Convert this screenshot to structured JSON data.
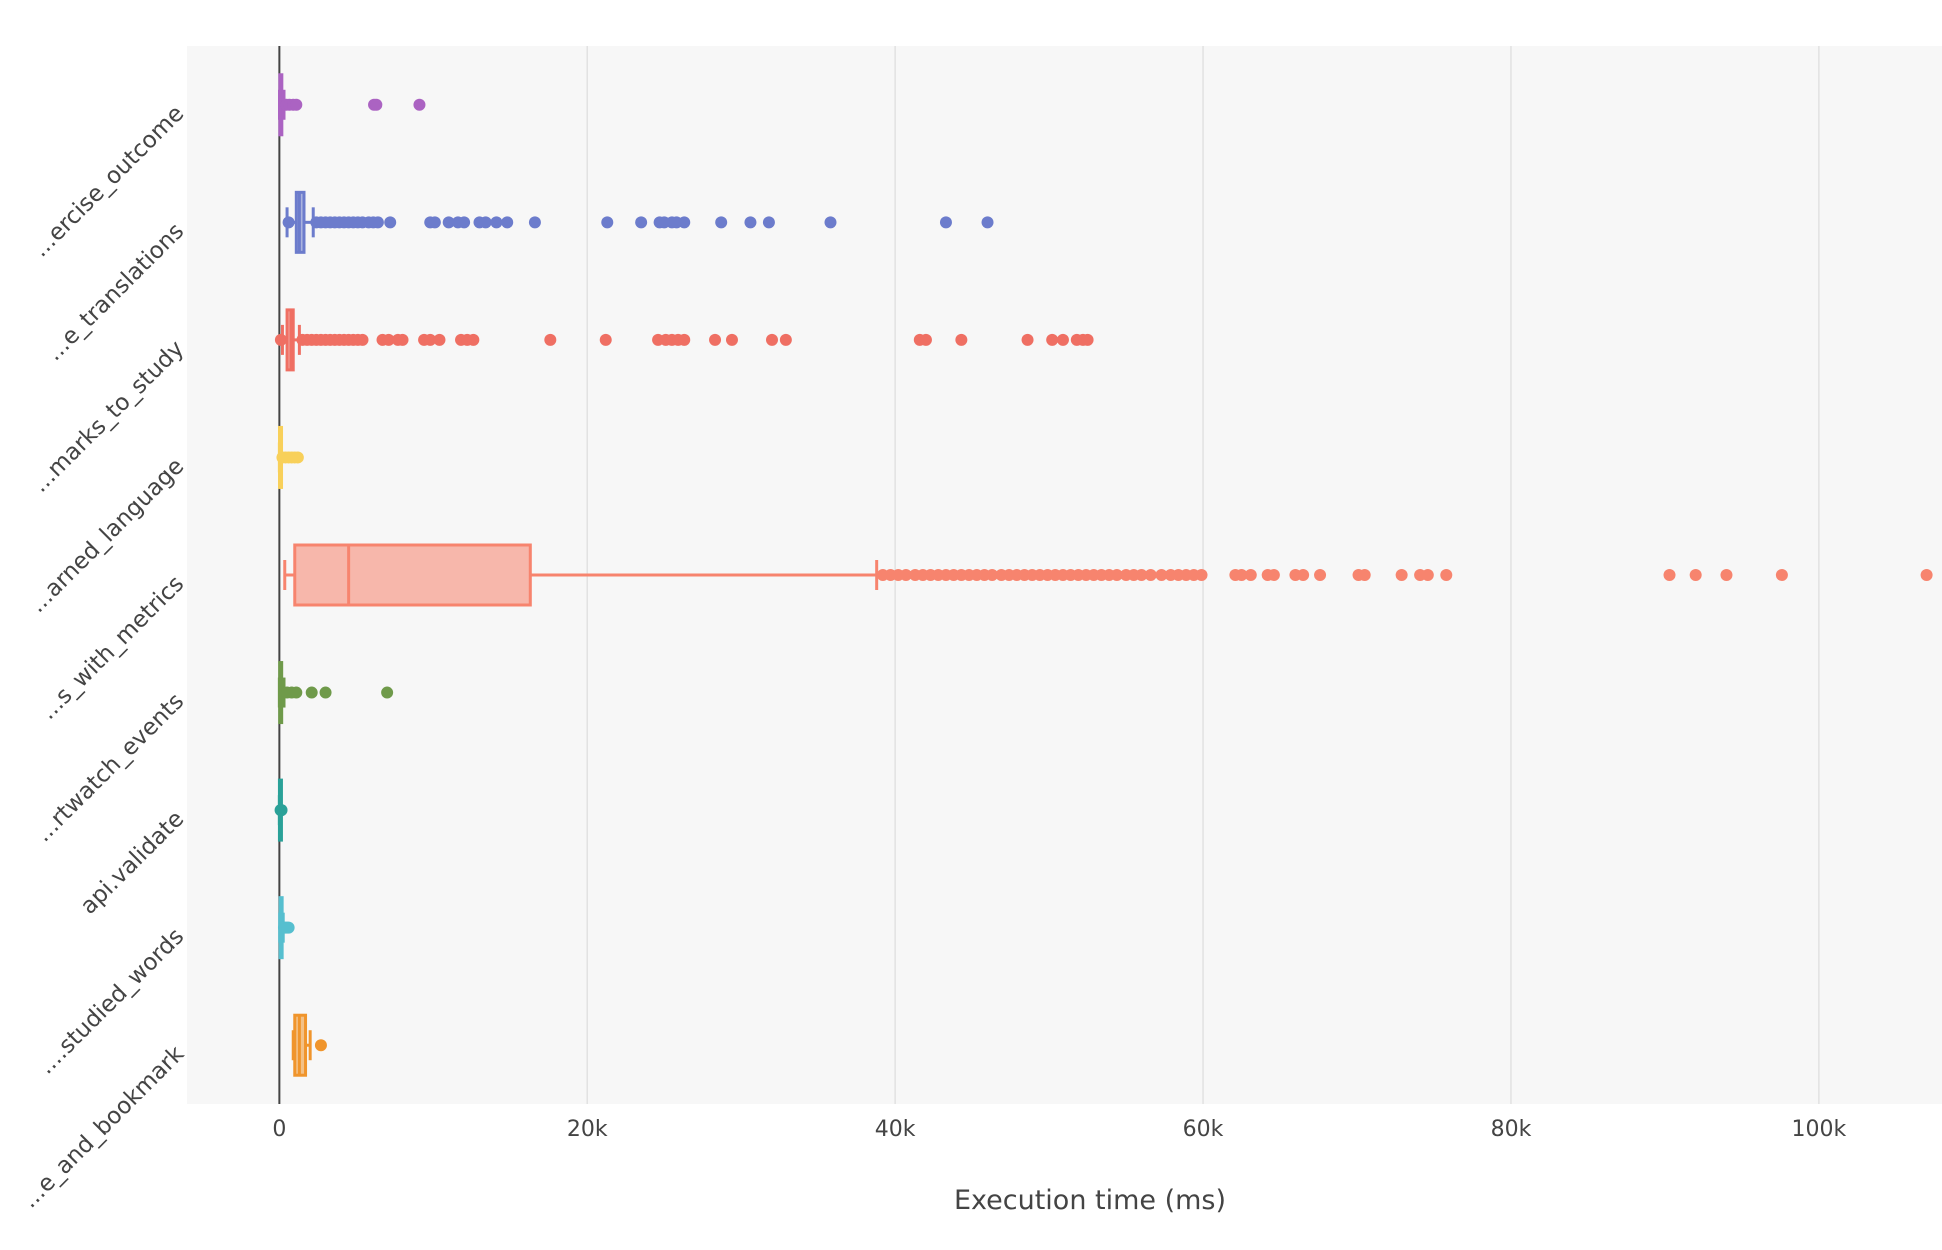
{
  "chart_data": {
    "type": "box",
    "orientation": "horizontal",
    "title": "",
    "xlabel": "Execution time (ms)",
    "ylabel": "",
    "xlim": [
      -6000,
      108000
    ],
    "x_ticks": [
      {
        "value": 0,
        "label": "0"
      },
      {
        "value": 20000,
        "label": "20k"
      },
      {
        "value": 40000,
        "label": "40k"
      },
      {
        "value": 60000,
        "label": "60k"
      },
      {
        "value": 80000,
        "label": "80k"
      },
      {
        "value": 100000,
        "label": "100k"
      }
    ],
    "grid": true,
    "legend": "none",
    "categories": [
      "...ercise_outcome",
      "...e_translations",
      "...marks_to_study",
      "...arned_language",
      "...s_with_metrics",
      "...rtwatch_events",
      "api.validate",
      "....studied_words",
      "...e_and_bookmark"
    ],
    "series": [
      {
        "category": "...ercise_outcome",
        "color": "#ab63c2",
        "stats": {
          "lower_fence": 10,
          "q1": 30,
          "median": 60,
          "q3": 120,
          "upper_fence": 300
        },
        "outliers": [
          450,
          650,
          900,
          1100,
          6150,
          6300,
          9100
        ]
      },
      {
        "category": "...e_translations",
        "color": "#6c7ccc",
        "stats": {
          "lower_fence": 500,
          "q1": 1100,
          "median": 1300,
          "q3": 1600,
          "upper_fence": 2200
        },
        "outliers": [
          600,
          2400,
          2700,
          3000,
          3300,
          3600,
          3900,
          4200,
          4500,
          4800,
          5100,
          5400,
          5800,
          6100,
          6400,
          7200,
          9800,
          10100,
          11000,
          11600,
          12000,
          13000,
          13400,
          14100,
          14800,
          16600,
          21300,
          23500,
          24700,
          25000,
          25500,
          25800,
          26300,
          28700,
          30600,
          31800,
          35800,
          43300,
          46000
        ]
      },
      {
        "category": "...marks_to_study",
        "color": "#ef6f63",
        "stats": {
          "lower_fence": 200,
          "q1": 500,
          "median": 750,
          "q3": 900,
          "upper_fence": 1300
        },
        "outliers": [
          100,
          1500,
          1800,
          2100,
          2400,
          2700,
          3000,
          3300,
          3600,
          3900,
          4200,
          4500,
          4800,
          5100,
          5400,
          6700,
          7100,
          7700,
          8000,
          9400,
          9800,
          10400,
          11800,
          12200,
          12600,
          17600,
          21200,
          24600,
          25100,
          25500,
          25900,
          26300,
          28300,
          29400,
          32000,
          32900,
          41600,
          42000,
          44300,
          48600,
          50200,
          50900,
          51800,
          52200,
          52500
        ]
      },
      {
        "category": "...arned_language",
        "color": "#f8d05a",
        "stats": {
          "lower_fence": 0,
          "q1": 10,
          "median": 20,
          "q3": 40,
          "upper_fence": 120
        },
        "outliers": [
          200,
          400,
          600,
          800,
          1000,
          1200
        ]
      },
      {
        "category": "...s_with_metrics",
        "color": "#f7846e",
        "stats": {
          "lower_fence": 350,
          "q1": 1000,
          "median": 4500,
          "q3": 16300,
          "upper_fence": 38800
        },
        "outliers": [
          39200,
          39700,
          40200,
          40700,
          41300,
          41800,
          42300,
          42800,
          43300,
          43800,
          44300,
          44800,
          45300,
          45800,
          46300,
          46900,
          47400,
          47900,
          48400,
          48900,
          49400,
          49900,
          50400,
          50900,
          51400,
          51900,
          52400,
          52900,
          53400,
          53900,
          54400,
          55000,
          55500,
          56000,
          56600,
          57300,
          57900,
          58400,
          58900,
          59400,
          59900,
          62100,
          62500,
          63100,
          64200,
          64600,
          66000,
          66500,
          67600,
          70100,
          70500,
          72900,
          74100,
          74600,
          75800,
          90300,
          92000,
          94000,
          97600,
          107000
        ]
      },
      {
        "category": "...rtwatch_events",
        "color": "#6f9a4a",
        "stats": {
          "lower_fence": 0,
          "q1": 20,
          "median": 60,
          "q3": 150,
          "upper_fence": 300
        },
        "outliers": [
          500,
          800,
          1100,
          2100,
          3000,
          7000
        ]
      },
      {
        "category": "api.validate",
        "color": "#2aa198",
        "stats": {
          "lower_fence": 0,
          "q1": 5,
          "median": 10,
          "q3": 20,
          "upper_fence": 50
        },
        "outliers": [
          80,
          110,
          140
        ]
      },
      {
        "category": "....studied_words",
        "color": "#56bfcf",
        "stats": {
          "lower_fence": 20,
          "q1": 50,
          "median": 80,
          "q3": 140,
          "upper_fence": 250
        },
        "outliers": [
          300,
          400,
          500,
          600
        ]
      },
      {
        "category": "...e_and_bookmark",
        "color": "#f0952c",
        "stats": {
          "lower_fence": 900,
          "q1": 1000,
          "median": 1300,
          "q3": 1700,
          "upper_fence": 2000
        },
        "outliers": [
          2700
        ]
      }
    ]
  }
}
